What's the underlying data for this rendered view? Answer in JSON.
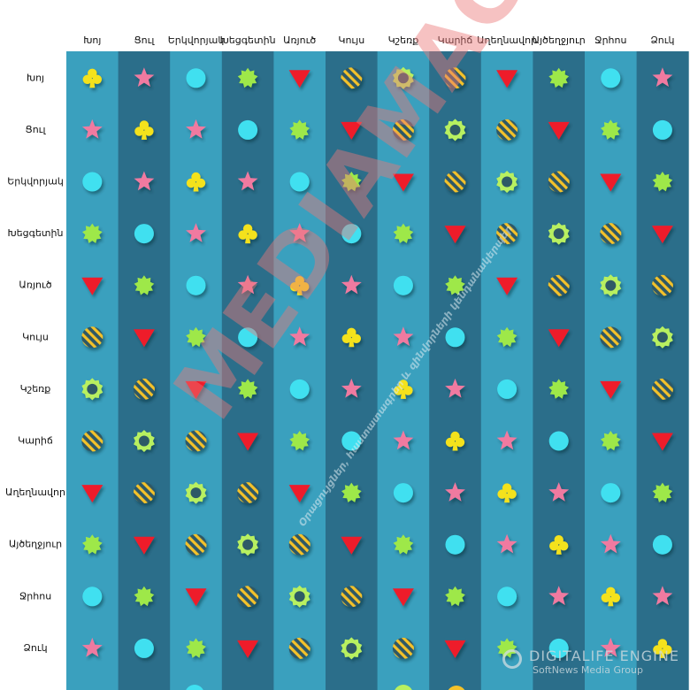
{
  "signs": [
    "Խոյ",
    "Ցուլ",
    "Երկվորյակ",
    "Խեցգետին",
    "Առյուծ",
    "Կույս",
    "Կշեռք",
    "Կարիճ",
    "Աղեղնավոր",
    "Այծեղջյուր",
    "Ջրհոս",
    "Ձուկ"
  ],
  "legend_glyph_meaning": {
    "clover": "same sign",
    "star": "pink star",
    "circle": "cyan circle",
    "sunburst": "green sunburst",
    "triangle": "red down-triangle",
    "striped": "yellow striped disc",
    "ring": "green ring"
  },
  "compatibility_matrix": [
    [
      "clover",
      "star",
      "circle",
      "sunburst",
      "triangle",
      "striped",
      "ring",
      "striped",
      "triangle",
      "sunburst",
      "circle",
      "star"
    ],
    [
      "star",
      "clover",
      "star",
      "circle",
      "sunburst",
      "triangle",
      "striped",
      "ring",
      "striped",
      "triangle",
      "sunburst",
      "circle"
    ],
    [
      "circle",
      "star",
      "clover",
      "star",
      "circle",
      "sunburst",
      "triangle",
      "striped",
      "ring",
      "striped",
      "triangle",
      "sunburst"
    ],
    [
      "sunburst",
      "circle",
      "star",
      "clover",
      "star",
      "circle",
      "sunburst",
      "triangle",
      "striped",
      "ring",
      "striped",
      "triangle"
    ],
    [
      "triangle",
      "sunburst",
      "circle",
      "star",
      "clover",
      "star",
      "circle",
      "sunburst",
      "triangle",
      "striped",
      "ring",
      "striped"
    ],
    [
      "striped",
      "triangle",
      "sunburst",
      "circle",
      "star",
      "clover",
      "star",
      "circle",
      "sunburst",
      "triangle",
      "striped",
      "ring"
    ],
    [
      "ring",
      "striped",
      "triangle",
      "sunburst",
      "circle",
      "star",
      "clover",
      "star",
      "circle",
      "sunburst",
      "triangle",
      "striped"
    ],
    [
      "striped",
      "ring",
      "striped",
      "triangle",
      "sunburst",
      "circle",
      "star",
      "clover",
      "star",
      "circle",
      "sunburst",
      "triangle"
    ],
    [
      "triangle",
      "striped",
      "ring",
      "striped",
      "triangle",
      "sunburst",
      "circle",
      "star",
      "clover",
      "star",
      "circle",
      "sunburst"
    ],
    [
      "sunburst",
      "triangle",
      "striped",
      "ring",
      "striped",
      "triangle",
      "sunburst",
      "circle",
      "star",
      "clover",
      "star",
      "circle"
    ],
    [
      "circle",
      "sunburst",
      "triangle",
      "striped",
      "ring",
      "striped",
      "triangle",
      "sunburst",
      "circle",
      "star",
      "clover",
      "star"
    ],
    [
      "star",
      "circle",
      "sunburst",
      "triangle",
      "striped",
      "ring",
      "striped",
      "triangle",
      "sunburst",
      "circle",
      "star",
      "clover"
    ]
  ],
  "colors": {
    "column_dark": "#2b6e8a",
    "column_light": "#3aa0be",
    "star": "#f07aa0",
    "circle": "#3fe0f0",
    "sunburst": "#9ee84a",
    "triangle": "#ee1c2c",
    "striped_a": "#f4c22a",
    "striped_b": "#2f5866",
    "ring_outer": "#b8f060",
    "ring_inner": "#2f5a66",
    "clover": "#f4e21a",
    "header_text": "#111111"
  },
  "watermark": {
    "text": "MEDIAMAG",
    "tagline": "Օրացույցներ, հաստատագրեր և զինվորների կենդանակերպեր"
  },
  "corner_logo": {
    "brand": "DIGITALIFE ENGINE",
    "sub": "SoftNews Media Group"
  }
}
